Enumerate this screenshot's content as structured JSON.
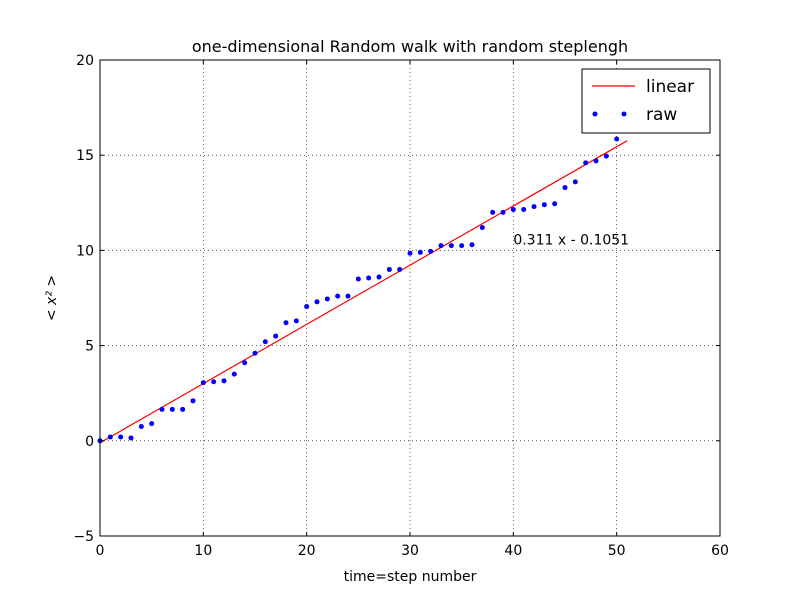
{
  "chart_data": {
    "type": "scatter",
    "title": "one-dimensional Random walk with random steplengh",
    "xlabel": "time=step number",
    "ylabel": "< x² >",
    "xlim": [
      0,
      60
    ],
    "ylim": [
      -5,
      20
    ],
    "xticks": [
      0,
      10,
      20,
      30,
      40,
      50,
      60
    ],
    "yticks": [
      -5,
      0,
      5,
      10,
      15,
      20
    ],
    "grid": true,
    "legend": {
      "placement": "top-right",
      "entries": [
        "linear",
        "raw"
      ]
    },
    "series": [
      {
        "name": "linear",
        "kind": "line",
        "color": "#ff0000",
        "x": [
          0,
          51
        ],
        "y": [
          -0.1051,
          15.756
        ]
      },
      {
        "name": "raw",
        "kind": "points",
        "color": "#0000ff",
        "x": [
          0,
          1,
          2,
          3,
          4,
          5,
          6,
          7,
          8,
          9,
          10,
          11,
          12,
          13,
          14,
          15,
          16,
          17,
          18,
          19,
          20,
          21,
          22,
          23,
          24,
          25,
          26,
          27,
          28,
          29,
          30,
          31,
          32,
          33,
          34,
          35,
          36,
          37,
          38,
          39,
          40,
          41,
          42,
          43,
          44,
          45,
          46,
          47,
          48,
          49,
          50
        ],
        "y": [
          0.0,
          0.2,
          0.2,
          0.15,
          0.75,
          0.9,
          1.65,
          1.65,
          1.65,
          2.1,
          3.05,
          3.1,
          3.15,
          3.5,
          4.1,
          4.6,
          5.2,
          5.5,
          6.2,
          6.3,
          7.05,
          7.3,
          7.45,
          7.6,
          7.6,
          8.5,
          8.55,
          8.6,
          9.0,
          9.0,
          9.85,
          9.9,
          9.95,
          10.25,
          10.25,
          10.25,
          10.3,
          11.2,
          12.0,
          12.0,
          12.15,
          12.15,
          12.3,
          12.4,
          12.45,
          13.3,
          13.6,
          14.6,
          14.7,
          14.95,
          15.85
        ]
      }
    ],
    "annotation": {
      "text": "0.311 x - 0.1051",
      "x": 40,
      "y": 10.3
    }
  }
}
